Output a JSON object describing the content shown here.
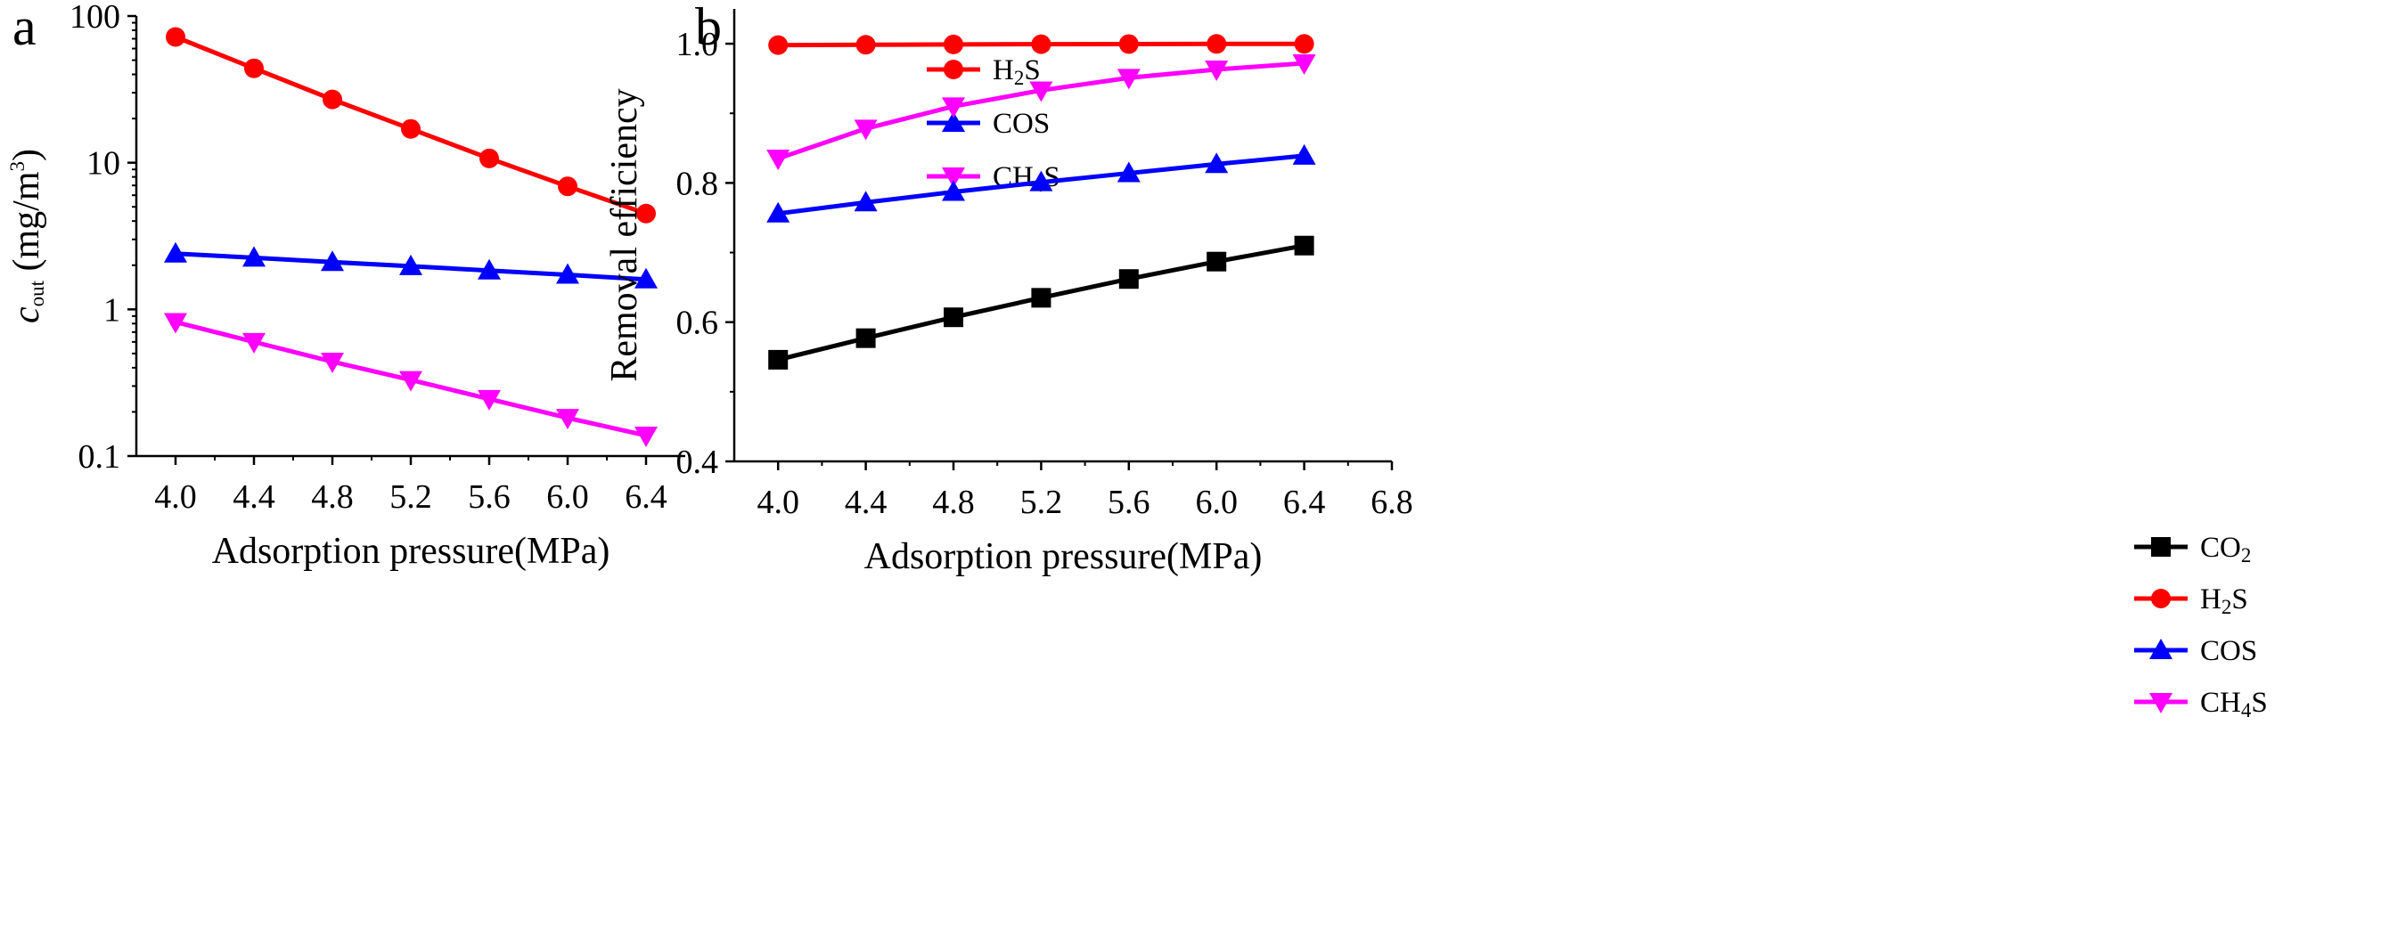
{
  "chart_data": [
    {
      "panel": "a",
      "type": "line",
      "yscale": "log",
      "title": "",
      "xlabel": "Adsorption pressure(MPa)",
      "ylabel": {
        "main": "c",
        "sub": "out",
        "rest": " (mg/m",
        "sup": "3",
        "close": ")"
      },
      "xlim": [
        3.8,
        6.6
      ],
      "ylim": [
        0.1,
        100
      ],
      "x_ticks": [
        4.0,
        4.4,
        4.8,
        5.2,
        5.6,
        6.0,
        6.4
      ],
      "x_tick_labels": [
        "4.0",
        "4.4",
        "4.8",
        "5.2",
        "5.6",
        "6.0",
        "6.4"
      ],
      "y_ticks": [
        0.1,
        1,
        10,
        100
      ],
      "y_tick_labels": [
        "0.1",
        "1",
        "10",
        "100"
      ],
      "x": [
        4.0,
        4.4,
        4.8,
        5.2,
        5.6,
        6.0,
        6.4
      ],
      "legend_position": "top-right",
      "series": [
        {
          "name": "H2S",
          "legend": {
            "pre": "H",
            "sub": "2",
            "post": "S"
          },
          "color": "#ff0000",
          "marker": "circle",
          "values": [
            72,
            44,
            27,
            17,
            10.7,
            6.9,
            4.5
          ]
        },
        {
          "name": "COS",
          "legend": {
            "pre": "COS",
            "sub": "",
            "post": ""
          },
          "color": "#0000ff",
          "marker": "triangle-up",
          "values": [
            2.4,
            2.25,
            2.1,
            1.97,
            1.84,
            1.72,
            1.6
          ]
        },
        {
          "name": "CH4S",
          "legend": {
            "pre": "CH",
            "sub": "4",
            "post": "S"
          },
          "color": "#ff00ff",
          "marker": "triangle-down",
          "values": [
            0.82,
            0.6,
            0.44,
            0.33,
            0.245,
            0.182,
            0.138
          ]
        }
      ]
    },
    {
      "panel": "b",
      "type": "line",
      "yscale": "linear",
      "title": "",
      "xlabel": "Adsorption pressure(MPa)",
      "ylabel": "Removal efficiency",
      "xlim": [
        3.8,
        6.8
      ],
      "ylim": [
        0.4,
        1.05
      ],
      "x_ticks": [
        4.0,
        4.4,
        4.8,
        5.2,
        5.6,
        6.0,
        6.4,
        6.8
      ],
      "x_tick_labels": [
        "4.0",
        "4.4",
        "4.8",
        "5.2",
        "5.6",
        "6.0",
        "6.4",
        "6.8"
      ],
      "y_ticks": [
        0.4,
        0.6,
        0.8,
        1.0
      ],
      "y_tick_labels": [
        "0.4",
        "0.6",
        "0.8",
        "1.0"
      ],
      "x": [
        4.0,
        4.4,
        4.8,
        5.2,
        5.6,
        6.0,
        6.4
      ],
      "legend_position": "bottom-right",
      "series": [
        {
          "name": "CO2",
          "legend": {
            "pre": "CO",
            "sub": "2",
            "post": ""
          },
          "color": "#000000",
          "marker": "square",
          "values": [
            0.546,
            0.577,
            0.607,
            0.635,
            0.662,
            0.687,
            0.71
          ]
        },
        {
          "name": "H2S",
          "legend": {
            "pre": "H",
            "sub": "2",
            "post": "S"
          },
          "color": "#ff0000",
          "marker": "circle",
          "values": [
            0.998,
            0.9985,
            0.999,
            0.9993,
            0.9995,
            0.9997,
            0.9998
          ]
        },
        {
          "name": "COS",
          "legend": {
            "pre": "COS",
            "sub": "",
            "post": ""
          },
          "color": "#0000ff",
          "marker": "triangle-up",
          "values": [
            0.756,
            0.772,
            0.787,
            0.801,
            0.814,
            0.827,
            0.839
          ]
        },
        {
          "name": "CH4S",
          "legend": {
            "pre": "CH",
            "sub": "4",
            "post": "S"
          },
          "color": "#ff00ff",
          "marker": "triangle-down",
          "values": [
            0.835,
            0.878,
            0.91,
            0.933,
            0.951,
            0.963,
            0.972
          ]
        }
      ]
    }
  ]
}
